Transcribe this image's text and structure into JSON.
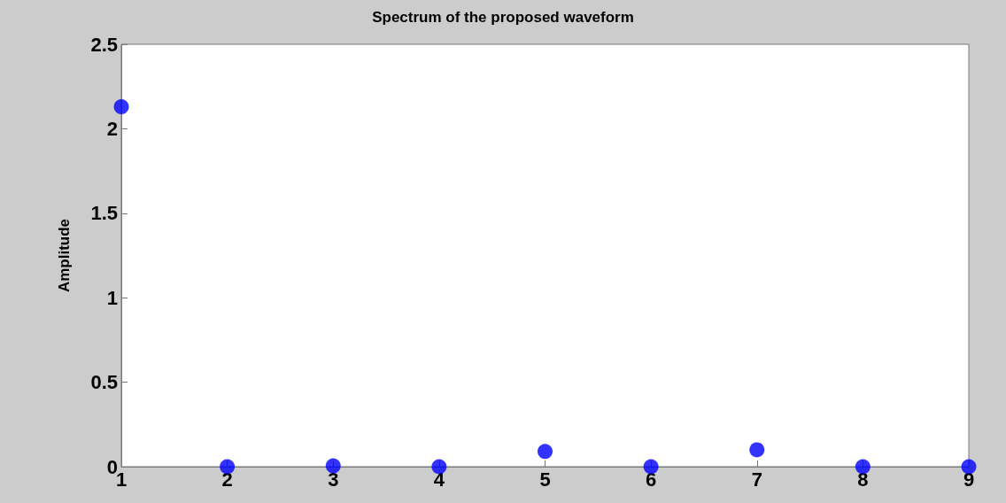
{
  "chart_data": {
    "type": "scatter",
    "title": "Spectrum of the proposed waveform",
    "ylabel": "Amplitude",
    "x": [
      1,
      2,
      3,
      4,
      5,
      6,
      7,
      8,
      9
    ],
    "series": [
      {
        "color": "#0000ff",
        "values": [
          2.13,
          0,
          0.005,
          0,
          0.09,
          0,
          0.1,
          0,
          0
        ]
      }
    ],
    "xlim": [
      1,
      9
    ],
    "xticks": [
      1,
      2,
      3,
      4,
      5,
      6,
      7,
      8,
      9
    ],
    "ylim": [
      0,
      2.5
    ],
    "yticks": [
      0,
      0.5,
      1,
      1.5,
      2,
      2.5
    ],
    "grid": false,
    "marker": "circle"
  }
}
